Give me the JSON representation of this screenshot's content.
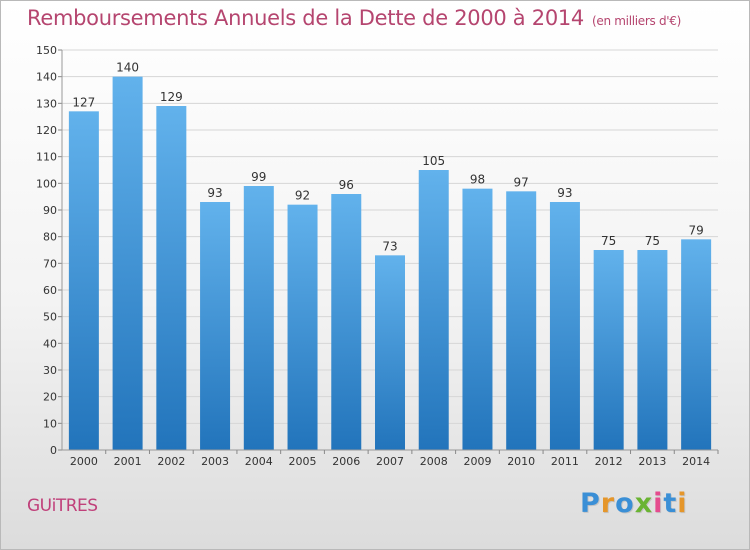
{
  "header": {
    "title": "Remboursements Annuels de la Dette de 2000 à 2014",
    "unit": "(en milliers d'€)"
  },
  "footer": {
    "commune": "GUiTRES",
    "brand_letters": [
      "P",
      "r",
      "o",
      "x",
      "i",
      "t",
      "i"
    ],
    "brand_colors": [
      "#3a8fd6",
      "#e5962a",
      "#3a8fd6",
      "#6ab432",
      "#e54b8e",
      "#3a8fd6",
      "#e5962a"
    ]
  },
  "colors": {
    "title": "#b5456f",
    "bar_top": "#62b2ec",
    "bar_bottom": "#2274bb",
    "grid": "#d6d6d6",
    "axis_text": "#333333"
  },
  "chart_data": {
    "type": "bar",
    "title": "Remboursements Annuels de la Dette de 2000 à 2014",
    "xlabel": "",
    "ylabel": "",
    "categories": [
      "2000",
      "2001",
      "2002",
      "2003",
      "2004",
      "2005",
      "2006",
      "2007",
      "2008",
      "2009",
      "2010",
      "2011",
      "2012",
      "2013",
      "2014"
    ],
    "values": [
      127,
      140,
      129,
      93,
      99,
      92,
      96,
      73,
      105,
      98,
      97,
      93,
      75,
      75,
      79
    ],
    "ylim": [
      0,
      150
    ],
    "yticks": [
      0,
      10,
      20,
      30,
      40,
      50,
      60,
      70,
      80,
      90,
      100,
      110,
      120,
      130,
      140,
      150
    ],
    "grid": true
  }
}
